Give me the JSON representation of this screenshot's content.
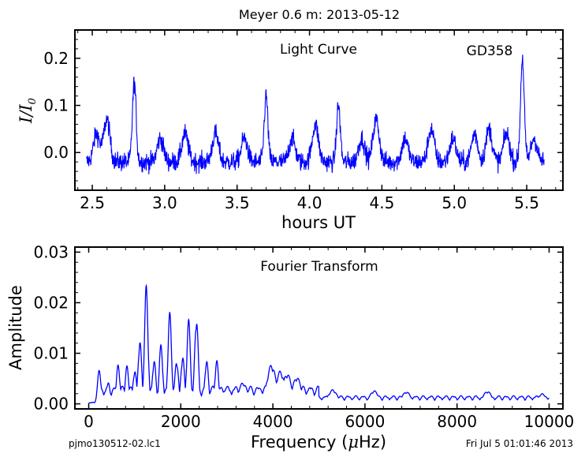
{
  "figure": {
    "title": "Meyer 0.6 m:  2013-05-12",
    "footer_left": "pjmo130512-02.lc1",
    "footer_right": "Fri Jul  5 01:01:46 2013",
    "line_color": "#0000ff"
  },
  "chart_data": [
    {
      "type": "line",
      "panel_title": "Light Curve",
      "annotation": "GD358",
      "xlabel": "hours UT",
      "ylabel": "I/I0",
      "xlim": [
        2.38,
        5.75
      ],
      "ylim": [
        -0.08,
        0.26
      ],
      "xticks": [
        2.5,
        3.0,
        3.5,
        4.0,
        4.5,
        5.0,
        5.5
      ],
      "xtick_labels": [
        "2.5",
        "3.0",
        "3.5",
        "4.0",
        "4.5",
        "5.0",
        "5.5"
      ],
      "yticks": [
        0.0,
        0.1,
        0.2
      ],
      "ytick_labels": [
        "0.0",
        "0.1",
        "0.2"
      ],
      "x_range": [
        2.46,
        5.62
      ],
      "baseline": 0.0,
      "peaks": [
        {
          "x": 2.53,
          "y": 0.06
        },
        {
          "x": 2.6,
          "y": 0.09
        },
        {
          "x": 2.79,
          "y": 0.17
        },
        {
          "x": 2.97,
          "y": 0.05
        },
        {
          "x": 3.14,
          "y": 0.06
        },
        {
          "x": 3.35,
          "y": 0.06
        },
        {
          "x": 3.55,
          "y": 0.05
        },
        {
          "x": 3.7,
          "y": 0.14
        },
        {
          "x": 3.88,
          "y": 0.05
        },
        {
          "x": 4.04,
          "y": 0.08
        },
        {
          "x": 4.2,
          "y": 0.12
        },
        {
          "x": 4.36,
          "y": 0.05
        },
        {
          "x": 4.46,
          "y": 0.09
        },
        {
          "x": 4.66,
          "y": 0.05
        },
        {
          "x": 4.84,
          "y": 0.07
        },
        {
          "x": 4.99,
          "y": 0.05
        },
        {
          "x": 5.14,
          "y": 0.06
        },
        {
          "x": 5.24,
          "y": 0.07
        },
        {
          "x": 5.36,
          "y": 0.06
        },
        {
          "x": 5.47,
          "y": 0.22
        },
        {
          "x": 5.55,
          "y": 0.05
        }
      ]
    },
    {
      "type": "line",
      "panel_title": "Fourier Transform",
      "xlabel": "Frequency (μHz)",
      "ylabel": "Amplitude",
      "xlim": [
        -300,
        10300
      ],
      "ylim": [
        -0.001,
        0.031
      ],
      "xticks": [
        0,
        2000,
        4000,
        6000,
        8000,
        10000
      ],
      "xtick_labels": [
        "0",
        "2000",
        "4000",
        "6000",
        "8000",
        "10000"
      ],
      "yticks": [
        0.0,
        0.01,
        0.02,
        0.03
      ],
      "ytick_labels": [
        "0.00",
        "0.01",
        "0.02",
        "0.03"
      ],
      "x_range": [
        0,
        10000
      ],
      "peaks": [
        {
          "x": 230,
          "y": 0.0068
        },
        {
          "x": 430,
          "y": 0.0042
        },
        {
          "x": 640,
          "y": 0.0078
        },
        {
          "x": 830,
          "y": 0.0075
        },
        {
          "x": 1000,
          "y": 0.0068
        },
        {
          "x": 1110,
          "y": 0.0127
        },
        {
          "x": 1250,
          "y": 0.0234
        },
        {
          "x": 1420,
          "y": 0.0088
        },
        {
          "x": 1570,
          "y": 0.0118
        },
        {
          "x": 1760,
          "y": 0.0181
        },
        {
          "x": 1910,
          "y": 0.0088
        },
        {
          "x": 2040,
          "y": 0.0096
        },
        {
          "x": 2170,
          "y": 0.0167
        },
        {
          "x": 2340,
          "y": 0.0175
        },
        {
          "x": 2560,
          "y": 0.0088
        },
        {
          "x": 2780,
          "y": 0.0087
        },
        {
          "x": 3000,
          "y": 0.0032
        },
        {
          "x": 3350,
          "y": 0.0042
        },
        {
          "x": 3690,
          "y": 0.0032
        },
        {
          "x": 3970,
          "y": 0.0078
        },
        {
          "x": 4160,
          "y": 0.0065
        },
        {
          "x": 4310,
          "y": 0.006
        },
        {
          "x": 4520,
          "y": 0.0053
        },
        {
          "x": 4800,
          "y": 0.0028
        },
        {
          "x": 5300,
          "y": 0.0028
        },
        {
          "x": 6200,
          "y": 0.0026
        },
        {
          "x": 6900,
          "y": 0.0024
        },
        {
          "x": 8660,
          "y": 0.0025
        },
        {
          "x": 9850,
          "y": 0.002
        }
      ]
    }
  ]
}
